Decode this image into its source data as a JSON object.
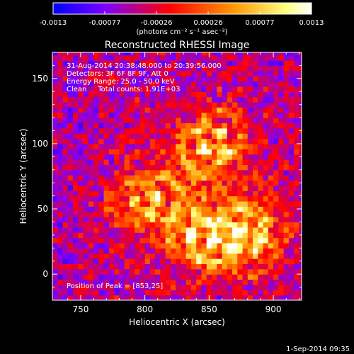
{
  "chart_data": {
    "type": "heatmap",
    "title": "Reconstructed RHESSI Image",
    "xlabel": "Heliocentric X (arcsec)",
    "ylabel": "Heliocentric Y (arcsec)",
    "xlim": [
      728,
      922
    ],
    "ylim": [
      -20,
      170
    ],
    "x_ticks": [
      750,
      800,
      850,
      900
    ],
    "y_ticks": [
      0,
      50,
      100,
      150
    ],
    "colorbar": {
      "ticks": [
        "-0.0013",
        "-0.00077",
        "-0.00026",
        "0.00026",
        "0.00077",
        "0.0013"
      ],
      "unit": "(photons cm⁻² s⁻¹ asec⁻²)",
      "range": [
        -0.0013,
        0.0013
      ],
      "colormap": [
        "#0000ff",
        "#7b00ff",
        "#ff0000",
        "#ff9900",
        "#ffff80",
        "#ffffff"
      ]
    },
    "annotations": [
      "31-Aug-2014 20:38:48.000 to 20:39:56.000",
      "Detectors: 3F 6F 8F 9F, Att 0",
      "Energy Range: 25.0 - 50.0 keV",
      "Clean     Total counts: 1.91E+03"
    ],
    "peak_label": "Position of Peak = [853,25]",
    "peak": [
      853,
      25
    ],
    "sources": [
      {
        "x": 790,
        "y": 55,
        "value": 0.0011
      },
      {
        "x": 810,
        "y": 60,
        "value": 0.001
      },
      {
        "x": 845,
        "y": 95,
        "value": 0.0012
      },
      {
        "x": 860,
        "y": 110,
        "value": 0.0011
      },
      {
        "x": 853,
        "y": 25,
        "value": 0.0013
      },
      {
        "x": 875,
        "y": 35,
        "value": 0.0012
      },
      {
        "x": 835,
        "y": 30,
        "value": 0.0011
      },
      {
        "x": 885,
        "y": 15,
        "value": 0.0009
      },
      {
        "x": 895,
        "y": 40,
        "value": 0.0008
      }
    ]
  },
  "footer": {
    "timestamp": "1-Sep-2014 09:35"
  }
}
